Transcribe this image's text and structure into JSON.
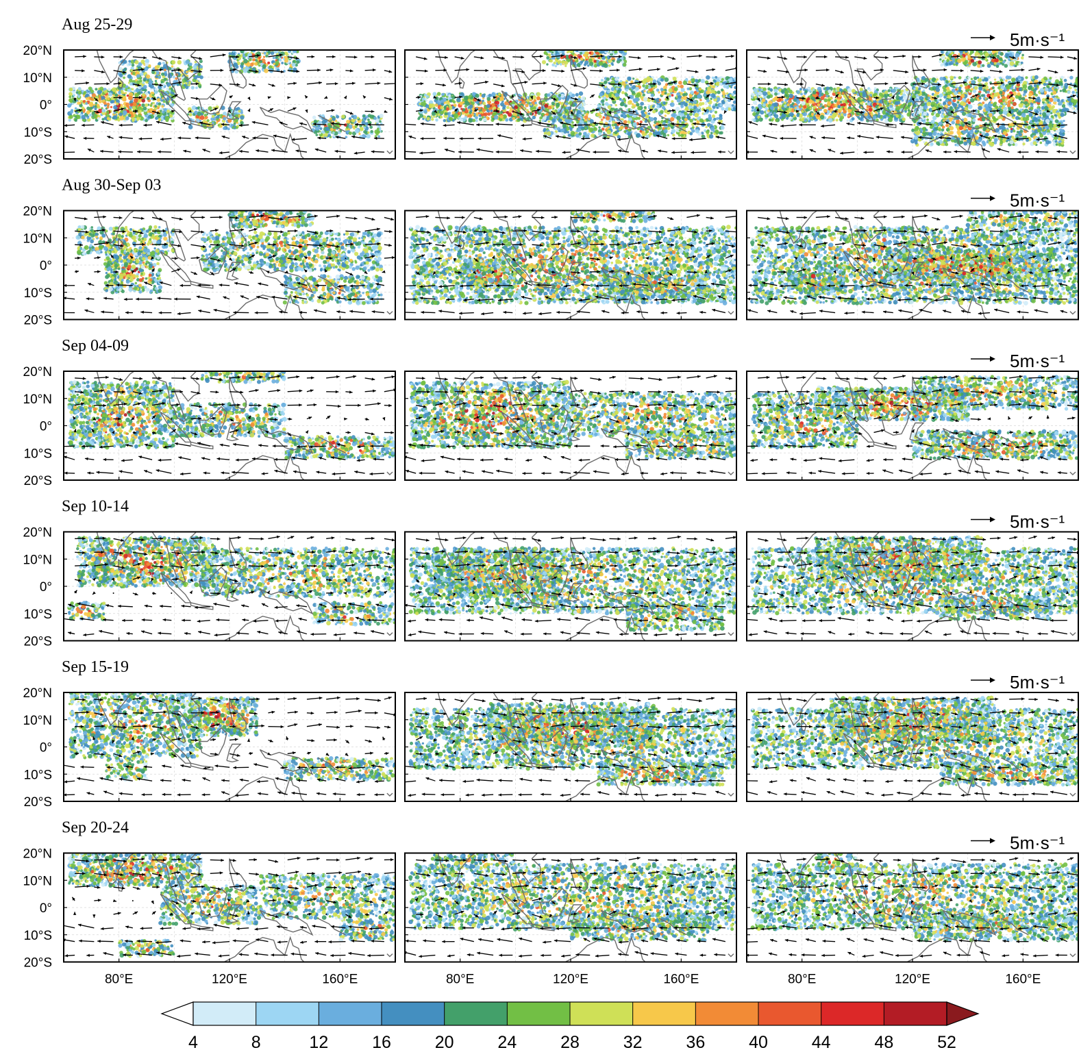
{
  "chart_data": {
    "type": "heatmap",
    "title": "",
    "layout": "6 rows x 3 columns of map panels; each row is one time period",
    "periods": [
      {
        "label": "Aug 25-29",
        "vector_reference": "5m·s⁻¹"
      },
      {
        "label": "Aug 30-Sep 03",
        "vector_reference": "5m·s⁻¹"
      },
      {
        "label": "Sep 04-09",
        "vector_reference": "5m·s⁻¹"
      },
      {
        "label": "Sep 10-14",
        "vector_reference": "5m·s⁻¹"
      },
      {
        "label": "Sep 15-19",
        "vector_reference": "5m·s⁻¹"
      },
      {
        "label": "Sep 20-24",
        "vector_reference": "5m·s⁻¹"
      }
    ],
    "x_axis": {
      "range_deg_east": [
        60,
        180
      ],
      "tick_values": [
        80,
        120,
        160
      ],
      "tick_labels": [
        "80°E",
        "120°E",
        "160°E"
      ]
    },
    "y_axis": {
      "range_deg_north": [
        -20,
        20
      ],
      "tick_values": [
        20,
        10,
        0,
        -10,
        -20
      ],
      "tick_labels": [
        "20°N",
        "10°N",
        "0°",
        "10°S",
        "20°S"
      ]
    },
    "grid": true,
    "overlay": "wind vectors and coastlines",
    "colorbar": {
      "orientation": "horizontal",
      "levels": [
        4,
        8,
        12,
        16,
        20,
        24,
        28,
        32,
        36,
        40,
        44,
        48,
        52
      ],
      "tick_labels": [
        "4",
        "8",
        "12",
        "16",
        "20",
        "24",
        "28",
        "32",
        "36",
        "40",
        "44",
        "48",
        "52"
      ],
      "colors": [
        "#d2ecf8",
        "#9dd6f3",
        "#6aaede",
        "#448fc0",
        "#43a06a",
        "#72bf45",
        "#cfe057",
        "#f7c84a",
        "#f28b36",
        "#e9582f",
        "#dc2828",
        "#b31c25"
      ],
      "under_color": "#ffffff",
      "over_color": "#8a1a1e",
      "extend": "both"
    },
    "precipitation_zones_description_free": true,
    "panels": [
      [
        {
          "zones": [
            [
              62,
              -6,
              100,
              6,
              0.9
            ],
            [
              105,
              -9,
              125,
              -1,
              0.6
            ],
            [
              120,
              12,
              145,
              20,
              0.7
            ],
            [
              150,
              -12,
              175,
              -4,
              0.6
            ],
            [
              80,
              6,
              110,
              16,
              0.5
            ]
          ]
        },
        {
          "zones": [
            [
              65,
              -6,
              125,
              4,
              0.9
            ],
            [
              130,
              -2,
              180,
              10,
              0.5
            ],
            [
              110,
              14,
              140,
              20,
              0.8
            ],
            [
              110,
              -12,
              175,
              -2,
              0.5
            ]
          ]
        },
        {
          "zones": [
            [
              62,
              -6,
              120,
              6,
              0.9
            ],
            [
              120,
              -3,
              180,
              10,
              0.6
            ],
            [
              130,
              14,
              160,
              20,
              0.9
            ],
            [
              120,
              -15,
              175,
              -2,
              0.6
            ]
          ]
        }
      ],
      [
        {
          "zones": [
            [
              75,
              -10,
              95,
              6,
              0.8
            ],
            [
              65,
              4,
              100,
              14,
              0.5
            ],
            [
              120,
              14,
              150,
              20,
              0.9
            ],
            [
              110,
              -2,
              175,
              12,
              0.5
            ],
            [
              140,
              -14,
              175,
              -4,
              0.5
            ]
          ]
        },
        {
          "zones": [
            [
              62,
              -14,
              180,
              14,
              0.5
            ],
            [
              80,
              -8,
              100,
              2,
              0.8
            ],
            [
              130,
              -12,
              170,
              -2,
              0.6
            ],
            [
              120,
              16,
              150,
              20,
              0.7
            ]
          ]
        },
        {
          "zones": [
            [
              62,
              -14,
              180,
              14,
              0.5
            ],
            [
              110,
              -6,
              170,
              6,
              0.8
            ],
            [
              75,
              -10,
              95,
              -2,
              0.7
            ],
            [
              140,
              14,
              180,
              20,
              0.5
            ]
          ]
        }
      ],
      [
        {
          "zones": [
            [
              62,
              -8,
              100,
              16,
              0.7
            ],
            [
              100,
              -4,
              140,
              8,
              0.5
            ],
            [
              140,
              -12,
              180,
              -4,
              0.7
            ],
            [
              110,
              16,
              140,
              20,
              0.6
            ]
          ]
        },
        {
          "zones": [
            [
              62,
              -8,
              120,
              16,
              0.7
            ],
            [
              120,
              -4,
              180,
              12,
              0.5
            ],
            [
              140,
              -12,
              180,
              -2,
              0.6
            ]
          ]
        },
        {
          "zones": [
            [
              85,
              2,
              140,
              14,
              0.9
            ],
            [
              62,
              -8,
              100,
              12,
              0.5
            ],
            [
              120,
              -12,
              180,
              -2,
              0.7
            ],
            [
              120,
              6,
              180,
              18,
              0.5
            ]
          ]
        }
      ],
      [
        {
          "zones": [
            [
              65,
              0,
              115,
              18,
              0.8
            ],
            [
              62,
              -12,
              75,
              -6,
              0.9
            ],
            [
              110,
              -4,
              180,
              14,
              0.4
            ],
            [
              150,
              -14,
              180,
              -6,
              0.5
            ]
          ]
        },
        {
          "zones": [
            [
              70,
              -4,
              115,
              14,
              0.8
            ],
            [
              62,
              -10,
              180,
              14,
              0.4
            ],
            [
              140,
              -16,
              175,
              -6,
              0.5
            ]
          ]
        },
        {
          "zones": [
            [
              85,
              2,
              145,
              18,
              0.9
            ],
            [
              62,
              -10,
              180,
              14,
              0.4
            ],
            [
              130,
              -12,
              170,
              -4,
              0.6
            ]
          ]
        }
      ],
      [
        {
          "zones": [
            [
              105,
              4,
              130,
              18,
              0.9
            ],
            [
              62,
              -4,
              110,
              20,
              0.5
            ],
            [
              140,
              -12,
              180,
              -4,
              0.6
            ],
            [
              75,
              -12,
              90,
              -4,
              0.5
            ]
          ]
        },
        {
          "zones": [
            [
              90,
              0,
              150,
              16,
              0.8
            ],
            [
              62,
              -8,
              180,
              14,
              0.4
            ],
            [
              130,
              -14,
              175,
              -6,
              0.7
            ]
          ]
        },
        {
          "zones": [
            [
              90,
              2,
              150,
              18,
              0.9
            ],
            [
              62,
              -8,
              180,
              14,
              0.4
            ],
            [
              130,
              -14,
              180,
              -6,
              0.7
            ]
          ]
        }
      ],
      [
        {
          "zones": [
            [
              62,
              8,
              110,
              20,
              0.8
            ],
            [
              95,
              -6,
              130,
              8,
              0.5
            ],
            [
              130,
              -4,
              180,
              12,
              0.4
            ],
            [
              160,
              -12,
              180,
              -4,
              0.6
            ],
            [
              80,
              -18,
              100,
              -12,
              0.5
            ]
          ]
        },
        {
          "zones": [
            [
              62,
              -8,
              180,
              16,
              0.4
            ],
            [
              120,
              -12,
              170,
              -2,
              0.5
            ],
            [
              70,
              14,
              100,
              20,
              0.4
            ]
          ]
        },
        {
          "zones": [
            [
              62,
              -8,
              180,
              16,
              0.4
            ],
            [
              120,
              -12,
              180,
              -2,
              0.5
            ],
            [
              85,
              14,
              100,
              20,
              0.6
            ]
          ]
        }
      ]
    ]
  }
}
